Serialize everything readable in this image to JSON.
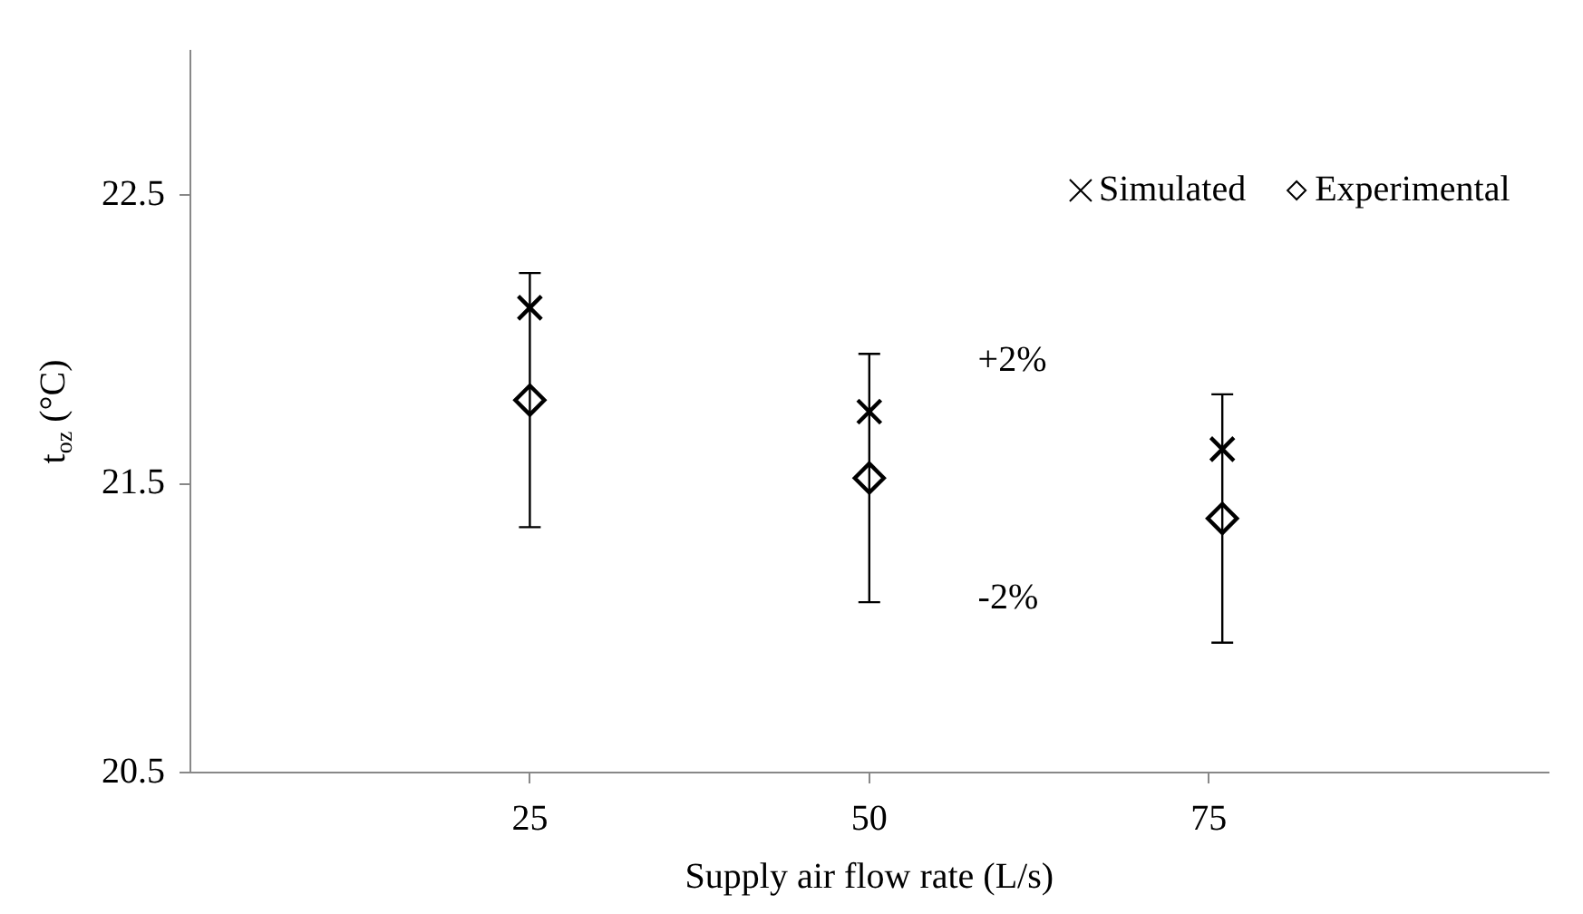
{
  "chart_data": {
    "type": "scatter",
    "xlabel": "Supply air flow rate (L/s)",
    "ylabel": "t$_{oz}$ (°C)",
    "xlim": [
      0,
      100
    ],
    "xticks": [
      25,
      50,
      75
    ],
    "ylim": [
      20.5,
      23
    ],
    "yticks": [
      20.5,
      21.5,
      22.5
    ],
    "grid": false,
    "legend": "top right",
    "series": [
      {
        "name": "Simulated",
        "color": "#000000",
        "marker": "cross",
        "x": [
          25,
          50,
          76
        ],
        "values": [
          22.11,
          21.75,
          21.62
        ]
      },
      {
        "name": "Experimental",
        "color": "#000000",
        "marker": "diamond",
        "x": [
          25,
          50,
          76
        ],
        "values": [
          21.79,
          21.52,
          21.38
        ],
        "errors": [
          0.44,
          0.43,
          0.43
        ]
      }
    ],
    "annotations": [
      "+2%",
      "-2%"
    ]
  }
}
